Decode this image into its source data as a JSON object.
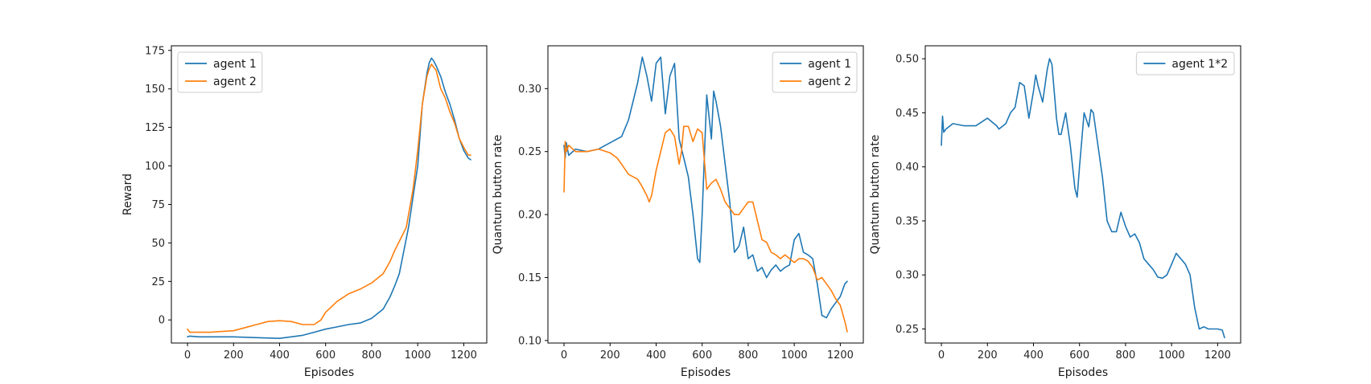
{
  "chart_data": [
    {
      "type": "line",
      "xlabel": "Episodes",
      "ylabel": "Reward",
      "xlim": [
        -70,
        1300
      ],
      "ylim": [
        -15,
        178
      ],
      "xticks": [
        0,
        200,
        400,
        600,
        800,
        1000,
        1200
      ],
      "yticks": [
        0,
        25,
        50,
        75,
        100,
        125,
        150,
        175
      ],
      "ytick_format": "int",
      "legend_position": "upper-left",
      "series": [
        {
          "name": "agent 1",
          "color": "#1f77b4",
          "points": [
            [
              0,
              -11
            ],
            [
              10,
              -10.5
            ],
            [
              50,
              -11
            ],
            [
              100,
              -11
            ],
            [
              200,
              -11
            ],
            [
              300,
              -11.5
            ],
            [
              400,
              -12
            ],
            [
              450,
              -11
            ],
            [
              500,
              -10
            ],
            [
              550,
              -8
            ],
            [
              600,
              -6
            ],
            [
              650,
              -4.5
            ],
            [
              700,
              -3
            ],
            [
              750,
              -2
            ],
            [
              800,
              1
            ],
            [
              850,
              7
            ],
            [
              880,
              15
            ],
            [
              900,
              22
            ],
            [
              920,
              30
            ],
            [
              940,
              45
            ],
            [
              960,
              60
            ],
            [
              980,
              80
            ],
            [
              1000,
              100
            ],
            [
              1020,
              140
            ],
            [
              1040,
              160
            ],
            [
              1050,
              167
            ],
            [
              1060,
              170
            ],
            [
              1070,
              168
            ],
            [
              1080,
              165
            ],
            [
              1100,
              158
            ],
            [
              1120,
              148
            ],
            [
              1140,
              140
            ],
            [
              1160,
              130
            ],
            [
              1180,
              118
            ],
            [
              1200,
              110
            ],
            [
              1220,
              105
            ],
            [
              1230,
              104
            ]
          ]
        },
        {
          "name": "agent 2",
          "color": "#ff7f0e",
          "points": [
            [
              0,
              -6
            ],
            [
              10,
              -8
            ],
            [
              50,
              -8
            ],
            [
              100,
              -8
            ],
            [
              150,
              -7.5
            ],
            [
              200,
              -7
            ],
            [
              250,
              -5
            ],
            [
              300,
              -3
            ],
            [
              350,
              -1
            ],
            [
              400,
              -0.5
            ],
            [
              450,
              -1
            ],
            [
              500,
              -3
            ],
            [
              550,
              -3
            ],
            [
              580,
              0
            ],
            [
              600,
              5
            ],
            [
              650,
              12
            ],
            [
              700,
              17
            ],
            [
              750,
              20
            ],
            [
              800,
              24
            ],
            [
              850,
              30
            ],
            [
              880,
              38
            ],
            [
              900,
              45
            ],
            [
              950,
              60
            ],
            [
              980,
              85
            ],
            [
              1000,
              110
            ],
            [
              1020,
              140
            ],
            [
              1040,
              158
            ],
            [
              1050,
              163
            ],
            [
              1060,
              166
            ],
            [
              1080,
              162
            ],
            [
              1100,
              150
            ],
            [
              1120,
              144
            ],
            [
              1140,
              135
            ],
            [
              1160,
              128
            ],
            [
              1180,
              118
            ],
            [
              1200,
              112
            ],
            [
              1220,
              107
            ],
            [
              1230,
              107
            ]
          ]
        }
      ]
    },
    {
      "type": "line",
      "xlabel": "Episodes",
      "ylabel": "Quantum button rate",
      "xlim": [
        -70,
        1300
      ],
      "ylim": [
        0.098,
        0.334
      ],
      "xticks": [
        0,
        200,
        400,
        600,
        800,
        1000,
        1200
      ],
      "yticks": [
        0.1,
        0.15,
        0.2,
        0.25,
        0.3
      ],
      "ytick_format": "2",
      "legend_position": "upper-right",
      "series": [
        {
          "name": "agent 1",
          "color": "#1f77b4",
          "points": [
            [
              0,
              0.255
            ],
            [
              5,
              0.245
            ],
            [
              10,
              0.257
            ],
            [
              20,
              0.247
            ],
            [
              50,
              0.252
            ],
            [
              100,
              0.25
            ],
            [
              150,
              0.252
            ],
            [
              200,
              0.257
            ],
            [
              250,
              0.262
            ],
            [
              280,
              0.275
            ],
            [
              300,
              0.29
            ],
            [
              320,
              0.305
            ],
            [
              340,
              0.325
            ],
            [
              360,
              0.31
            ],
            [
              380,
              0.29
            ],
            [
              400,
              0.32
            ],
            [
              420,
              0.325
            ],
            [
              440,
              0.28
            ],
            [
              460,
              0.31
            ],
            [
              480,
              0.32
            ],
            [
              500,
              0.26
            ],
            [
              520,
              0.245
            ],
            [
              540,
              0.23
            ],
            [
              560,
              0.2
            ],
            [
              580,
              0.165
            ],
            [
              590,
              0.162
            ],
            [
              600,
              0.2
            ],
            [
              620,
              0.295
            ],
            [
              640,
              0.26
            ],
            [
              650,
              0.298
            ],
            [
              660,
              0.29
            ],
            [
              680,
              0.27
            ],
            [
              700,
              0.24
            ],
            [
              720,
              0.21
            ],
            [
              740,
              0.17
            ],
            [
              760,
              0.175
            ],
            [
              780,
              0.19
            ],
            [
              800,
              0.165
            ],
            [
              820,
              0.168
            ],
            [
              840,
              0.155
            ],
            [
              860,
              0.158
            ],
            [
              880,
              0.15
            ],
            [
              900,
              0.156
            ],
            [
              920,
              0.16
            ],
            [
              940,
              0.155
            ],
            [
              960,
              0.158
            ],
            [
              980,
              0.16
            ],
            [
              1000,
              0.18
            ],
            [
              1020,
              0.185
            ],
            [
              1040,
              0.17
            ],
            [
              1060,
              0.168
            ],
            [
              1080,
              0.165
            ],
            [
              1100,
              0.145
            ],
            [
              1120,
              0.12
            ],
            [
              1140,
              0.118
            ],
            [
              1160,
              0.125
            ],
            [
              1180,
              0.13
            ],
            [
              1200,
              0.135
            ],
            [
              1220,
              0.145
            ],
            [
              1230,
              0.147
            ]
          ]
        },
        {
          "name": "agent 2",
          "color": "#ff7f0e",
          "points": [
            [
              0,
              0.218
            ],
            [
              5,
              0.258
            ],
            [
              10,
              0.25
            ],
            [
              20,
              0.255
            ],
            [
              50,
              0.25
            ],
            [
              100,
              0.25
            ],
            [
              150,
              0.252
            ],
            [
              200,
              0.249
            ],
            [
              230,
              0.245
            ],
            [
              250,
              0.24
            ],
            [
              280,
              0.232
            ],
            [
              300,
              0.23
            ],
            [
              320,
              0.228
            ],
            [
              340,
              0.222
            ],
            [
              360,
              0.215
            ],
            [
              370,
              0.21
            ],
            [
              380,
              0.215
            ],
            [
              400,
              0.235
            ],
            [
              420,
              0.25
            ],
            [
              440,
              0.265
            ],
            [
              460,
              0.268
            ],
            [
              480,
              0.262
            ],
            [
              500,
              0.24
            ],
            [
              510,
              0.25
            ],
            [
              520,
              0.27
            ],
            [
              540,
              0.27
            ],
            [
              560,
              0.258
            ],
            [
              580,
              0.268
            ],
            [
              600,
              0.265
            ],
            [
              620,
              0.22
            ],
            [
              640,
              0.225
            ],
            [
              660,
              0.228
            ],
            [
              680,
              0.22
            ],
            [
              700,
              0.21
            ],
            [
              720,
              0.205
            ],
            [
              740,
              0.2
            ],
            [
              760,
              0.2
            ],
            [
              780,
              0.205
            ],
            [
              800,
              0.21
            ],
            [
              820,
              0.21
            ],
            [
              840,
              0.195
            ],
            [
              860,
              0.18
            ],
            [
              880,
              0.178
            ],
            [
              900,
              0.17
            ],
            [
              920,
              0.168
            ],
            [
              940,
              0.165
            ],
            [
              960,
              0.168
            ],
            [
              980,
              0.165
            ],
            [
              1000,
              0.162
            ],
            [
              1020,
              0.165
            ],
            [
              1040,
              0.165
            ],
            [
              1060,
              0.163
            ],
            [
              1080,
              0.158
            ],
            [
              1100,
              0.148
            ],
            [
              1120,
              0.15
            ],
            [
              1140,
              0.145
            ],
            [
              1160,
              0.14
            ],
            [
              1180,
              0.133
            ],
            [
              1200,
              0.128
            ],
            [
              1220,
              0.115
            ],
            [
              1230,
              0.107
            ]
          ]
        }
      ]
    },
    {
      "type": "line",
      "xlabel": "Episodes",
      "ylabel": "Quantum button rate",
      "xlim": [
        -70,
        1300
      ],
      "ylim": [
        0.237,
        0.512
      ],
      "xticks": [
        0,
        200,
        400,
        600,
        800,
        1000,
        1200
      ],
      "yticks": [
        0.25,
        0.3,
        0.35,
        0.4,
        0.45,
        0.5
      ],
      "ytick_format": "2",
      "legend_position": "upper-right",
      "series": [
        {
          "name": "agent 1*2",
          "color": "#1f77b4",
          "points": [
            [
              0,
              0.42
            ],
            [
              5,
              0.447
            ],
            [
              10,
              0.432
            ],
            [
              20,
              0.435
            ],
            [
              50,
              0.44
            ],
            [
              100,
              0.438
            ],
            [
              150,
              0.438
            ],
            [
              200,
              0.445
            ],
            [
              240,
              0.438
            ],
            [
              250,
              0.435
            ],
            [
              280,
              0.44
            ],
            [
              300,
              0.45
            ],
            [
              320,
              0.455
            ],
            [
              340,
              0.478
            ],
            [
              360,
              0.475
            ],
            [
              380,
              0.445
            ],
            [
              400,
              0.47
            ],
            [
              410,
              0.485
            ],
            [
              420,
              0.475
            ],
            [
              440,
              0.46
            ],
            [
              460,
              0.49
            ],
            [
              470,
              0.5
            ],
            [
              480,
              0.495
            ],
            [
              500,
              0.445
            ],
            [
              510,
              0.43
            ],
            [
              520,
              0.43
            ],
            [
              540,
              0.45
            ],
            [
              560,
              0.42
            ],
            [
              580,
              0.38
            ],
            [
              590,
              0.372
            ],
            [
              600,
              0.4
            ],
            [
              620,
              0.45
            ],
            [
              640,
              0.437
            ],
            [
              650,
              0.453
            ],
            [
              660,
              0.45
            ],
            [
              680,
              0.42
            ],
            [
              700,
              0.39
            ],
            [
              720,
              0.35
            ],
            [
              740,
              0.34
            ],
            [
              760,
              0.34
            ],
            [
              780,
              0.358
            ],
            [
              800,
              0.345
            ],
            [
              820,
              0.335
            ],
            [
              840,
              0.338
            ],
            [
              860,
              0.33
            ],
            [
              880,
              0.315
            ],
            [
              900,
              0.31
            ],
            [
              920,
              0.305
            ],
            [
              940,
              0.298
            ],
            [
              960,
              0.297
            ],
            [
              980,
              0.3
            ],
            [
              1000,
              0.31
            ],
            [
              1020,
              0.32
            ],
            [
              1040,
              0.315
            ],
            [
              1060,
              0.31
            ],
            [
              1080,
              0.3
            ],
            [
              1100,
              0.27
            ],
            [
              1120,
              0.25
            ],
            [
              1140,
              0.252
            ],
            [
              1160,
              0.25
            ],
            [
              1180,
              0.25
            ],
            [
              1200,
              0.25
            ],
            [
              1220,
              0.249
            ],
            [
              1230,
              0.242
            ]
          ]
        }
      ]
    }
  ]
}
